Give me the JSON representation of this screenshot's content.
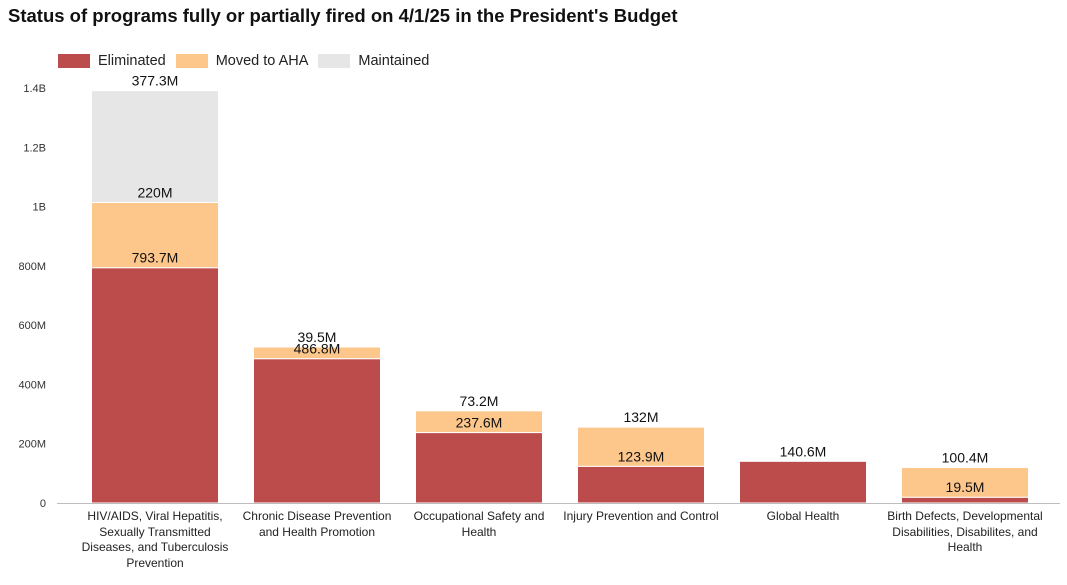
{
  "page": {
    "title": "Status of programs fully or partially fired on 4/1/25 in the President's Budget"
  },
  "colors": {
    "Eliminated": "#bc4c4c",
    "Moved to AHA": "#fdc68a",
    "Maintained": "#e6e6e6"
  },
  "chart_data": {
    "type": "bar",
    "stacked": true,
    "title": "Status of programs fully or partially fired on 4/1/25 in the President's Budget",
    "xlabel": "",
    "ylabel": "",
    "ylim": [
      0,
      1400000000
    ],
    "yticks": [
      0,
      200000000,
      400000000,
      600000000,
      800000000,
      1000000000,
      1200000000,
      1400000000
    ],
    "ytick_labels": [
      "0",
      "200M",
      "400M",
      "600M",
      "800M",
      "1B",
      "1.2B",
      "1.4B"
    ],
    "legend_position": "top-left",
    "grid": false,
    "categories": [
      "HIV/AIDS, Viral Hepatitis, Sexually Transmitted Diseases, and Tuberculosis Prevention",
      "Chronic Disease Prevention and Health Promotion",
      "Occupational Safety and Health",
      "Injury Prevention and Control",
      "Global Health",
      "Birth Defects, Developmental Disabilities, Disabilites, and Health"
    ],
    "series": [
      {
        "name": "Eliminated",
        "values": [
          793700000,
          486800000,
          237600000,
          123900000,
          140600000,
          19500000
        ],
        "labels": [
          "793.7M",
          "486.8M",
          "237.6M",
          "123.9M",
          "140.6M",
          "19.5M"
        ]
      },
      {
        "name": "Moved to AHA",
        "values": [
          220000000,
          39500000,
          73200000,
          132000000,
          0,
          100400000
        ],
        "labels": [
          "220M",
          "39.5M",
          "73.2M",
          "132M",
          "",
          "100.4M"
        ]
      },
      {
        "name": "Maintained",
        "values": [
          377300000,
          0,
          0,
          0,
          0,
          0
        ],
        "labels": [
          "377.3M",
          "",
          "",
          "",
          "",
          ""
        ]
      }
    ]
  }
}
